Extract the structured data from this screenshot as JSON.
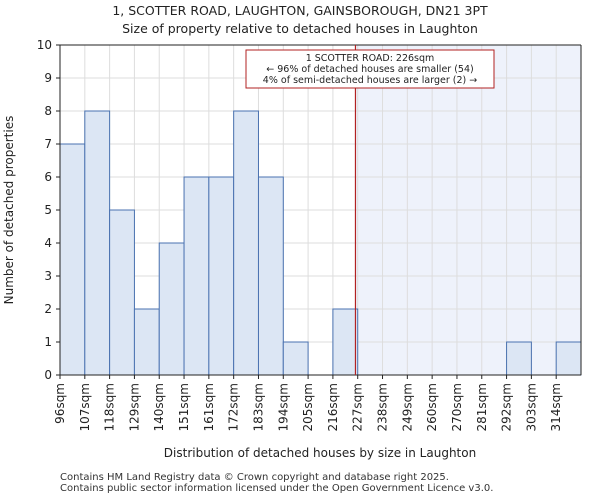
{
  "chart_data": {
    "type": "bar",
    "title": "1, SCOTTER ROAD, LAUGHTON, GAINSBOROUGH, DN21 3PT",
    "subtitle": "Size of property relative to detached houses in Laughton",
    "xlabel": "Distribution of detached houses by size in Laughton",
    "ylabel": "Number of detached properties",
    "categories": [
      "96sqm",
      "107sqm",
      "118sqm",
      "129sqm",
      "140sqm",
      "151sqm",
      "161sqm",
      "172sqm",
      "183sqm",
      "194sqm",
      "205sqm",
      "216sqm",
      "227sqm",
      "238sqm",
      "249sqm",
      "260sqm",
      "270sqm",
      "281sqm",
      "292sqm",
      "303sqm",
      "314sqm"
    ],
    "values": [
      7,
      8,
      5,
      2,
      4,
      6,
      6,
      8,
      6,
      1,
      0,
      2,
      0,
      0,
      0,
      0,
      0,
      0,
      1,
      0,
      1
    ],
    "ylim": [
      0,
      10
    ],
    "yticks": [
      0,
      1,
      2,
      3,
      4,
      5,
      6,
      7,
      8,
      9,
      10
    ],
    "grid": true,
    "marker": {
      "value": 226,
      "label": "1 SCOTTER ROAD: 226sqm",
      "lines": [
        "1 SCOTTER ROAD: 226sqm",
        "← 96% of detached houses are smaller (54)",
        "4% of semi-detached houses are larger (2) →"
      ]
    },
    "colors": {
      "bar_fill": "#dce6f4",
      "bar_stroke": "#4a72b0",
      "marker_line": "#b22222",
      "shade": "#eef2fb",
      "grid": "#dddddd"
    }
  },
  "footer": {
    "line1": "Contains HM Land Registry data © Crown copyright and database right 2025.",
    "line2": "Contains public sector information licensed under the Open Government Licence v3.0."
  }
}
